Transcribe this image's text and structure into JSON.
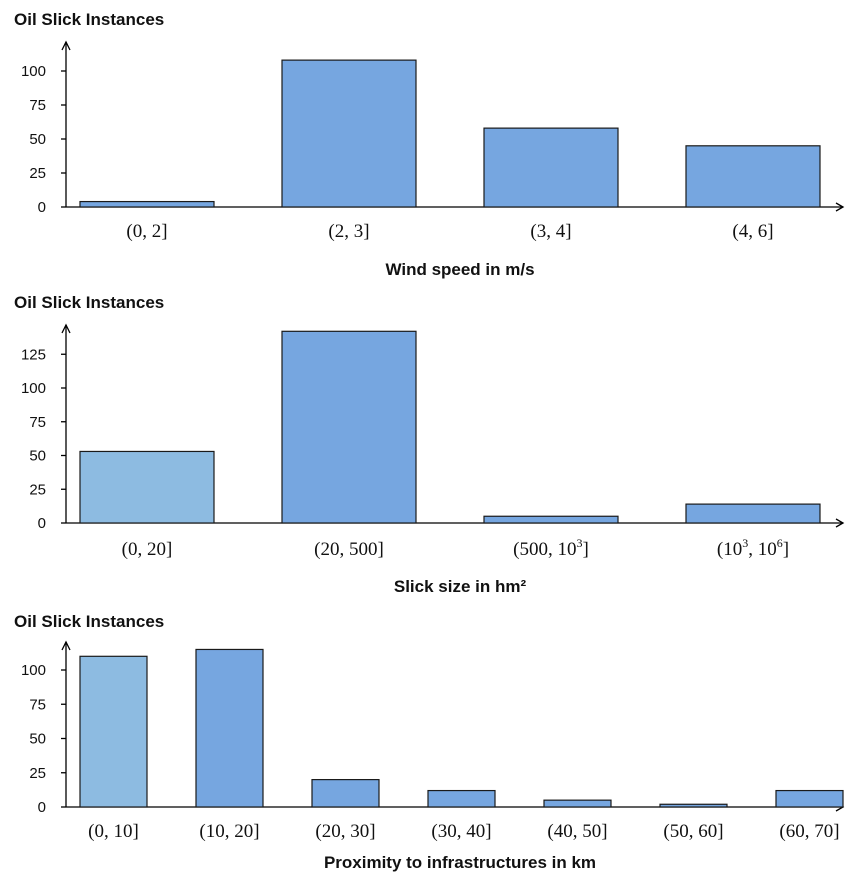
{
  "chart_data": [
    {
      "type": "bar",
      "ylabel": "Oil Slick Instances",
      "xlabel": "Wind speed in m/s",
      "categories": [
        "(0, 2]",
        "(2, 3]",
        "(3, 4]",
        "(4, 6]"
      ],
      "values": [
        4,
        108,
        58,
        45
      ],
      "yticks": [
        0,
        25,
        50,
        75,
        100
      ],
      "ylim": [
        0,
        120
      ],
      "grid": false,
      "colors": [
        "#76a6e0",
        "#76a6e0",
        "#76a6e0",
        "#76a6e0"
      ]
    },
    {
      "type": "bar",
      "ylabel": "Oil Slick Instances",
      "xlabel": "Slick size in hm²",
      "categories": [
        "(0, 20]",
        "(20, 500]",
        "(500, 10^3]",
        "(10^3, 10^6]"
      ],
      "values": [
        53,
        142,
        5,
        14
      ],
      "yticks": [
        0,
        25,
        50,
        75,
        100,
        125
      ],
      "ylim": [
        0,
        150
      ],
      "grid": false,
      "colors": [
        "#8dbbe1",
        "#76a6e0",
        "#76a6e0",
        "#76a6e0"
      ]
    },
    {
      "type": "bar",
      "ylabel": "Oil Slick Instances",
      "xlabel": "Proximity to infrastructures in km",
      "categories": [
        "(0, 10]",
        "(10, 20]",
        "(20, 30]",
        "(30, 40]",
        "(40, 50]",
        "(50, 60]",
        "(60, 70]"
      ],
      "values": [
        110,
        115,
        20,
        12,
        5,
        2,
        12
      ],
      "yticks": [
        0,
        25,
        50,
        75,
        100
      ],
      "ylim": [
        0,
        120
      ],
      "grid": false,
      "colors": [
        "#8dbbe1",
        "#76a6e0",
        "#76a6e0",
        "#76a6e0",
        "#76a6e0",
        "#76a6e0",
        "#76a6e0"
      ]
    }
  ]
}
